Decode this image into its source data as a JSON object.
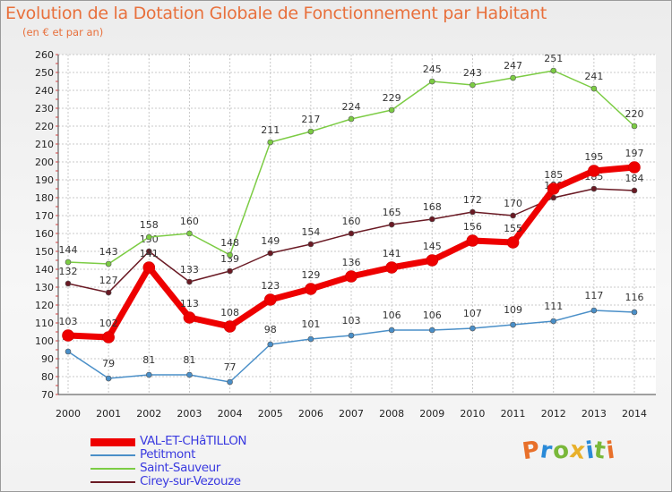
{
  "chart_data": {
    "type": "line",
    "title": "Evolution de la Dotation Globale de Fonctionnement par Habitant",
    "subtitle": "(en € et par an)",
    "x": [
      "2000",
      "2001",
      "2002",
      "2003",
      "2004",
      "2005",
      "2006",
      "2007",
      "2008",
      "2009",
      "2010",
      "2011",
      "2012",
      "2013",
      "2014"
    ],
    "ylim": [
      70,
      260
    ],
    "yticks": [
      70,
      80,
      90,
      100,
      110,
      120,
      130,
      140,
      150,
      160,
      170,
      180,
      190,
      200,
      210,
      220,
      230,
      240,
      250,
      260
    ],
    "grid": true,
    "legend_position": "bottom-left",
    "series": [
      {
        "name": "VAL-ET-CHâTILLON",
        "color": "#ee0000",
        "values": [
          103,
          102,
          141,
          113,
          108,
          123,
          129,
          136,
          141,
          145,
          156,
          155,
          185,
          195,
          197
        ]
      },
      {
        "name": "Petitmont",
        "color": "#4a8fc8",
        "values": [
          94,
          79,
          81,
          81,
          77,
          98,
          101,
          103,
          106,
          106,
          107,
          109,
          111,
          117,
          116
        ]
      },
      {
        "name": "Saint-Sauveur",
        "color": "#7ccc44",
        "values": [
          144,
          143,
          158,
          160,
          148,
          211,
          217,
          224,
          229,
          245,
          243,
          247,
          251,
          241,
          220
        ]
      },
      {
        "name": "Cirey-sur-Vezouze",
        "color": "#6a1a24",
        "values": [
          132,
          127,
          150,
          133,
          139,
          149,
          154,
          160,
          165,
          168,
          172,
          170,
          180,
          185,
          184
        ]
      }
    ]
  },
  "logo": {
    "letters": [
      "P",
      "r",
      "o",
      "x",
      "i",
      "t",
      "i"
    ],
    "colors": [
      "#e8702a",
      "#2a8ad8",
      "#7ab83a",
      "#e8b02a",
      "#2a8ad8",
      "#7ab83a",
      "#e8702a"
    ]
  }
}
